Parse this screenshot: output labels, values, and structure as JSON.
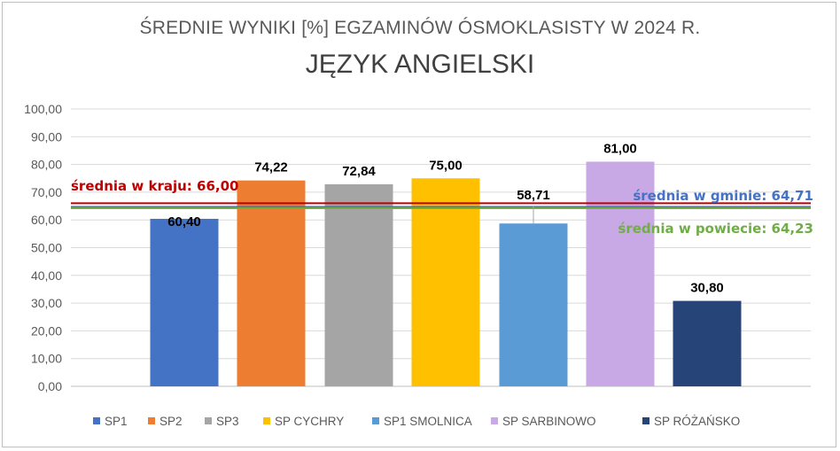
{
  "chart_data": {
    "type": "bar",
    "title": "ŚREDNIE WYNIKI [%] EGZAMINÓW ÓSMOKLASISTY  W 2024 R.",
    "subtitle": "JĘZYK ANGIELSKI",
    "categories": [
      "SP1",
      "SP2",
      "SP3",
      "SP CYCHRY",
      "SP1 SMOLNICA",
      "SP SARBINOWO",
      "SP RÓŻAŃSKO"
    ],
    "values": [
      60.4,
      74.22,
      72.84,
      75.0,
      58.71,
      81.0,
      30.8
    ],
    "value_labels": [
      "60,40",
      "74,22",
      "72,84",
      "75,00",
      "58,71",
      "81,00",
      "30,80"
    ],
    "colors": [
      "#4472c4",
      "#ed7d31",
      "#a5a5a5",
      "#ffc000",
      "#5b9bd5",
      "#c9a8e6",
      "#264478"
    ],
    "ylim": [
      0,
      100
    ],
    "y_ticks": [
      "0,00",
      "10,00",
      "20,00",
      "30,00",
      "40,00",
      "50,00",
      "60,00",
      "70,00",
      "80,00",
      "90,00",
      "100,00"
    ],
    "grid": true,
    "legend_position": "bottom",
    "reference_lines": [
      {
        "label": "średnia w kraju: 66,00",
        "value": 66.0,
        "color": "#c00000"
      },
      {
        "label": "średnia w gminie: 64,71",
        "value": 64.71,
        "color": "#4472c4"
      },
      {
        "label": "średnia w powiecie: 64,23",
        "value": 64.23,
        "color": "#70ad47"
      }
    ]
  }
}
